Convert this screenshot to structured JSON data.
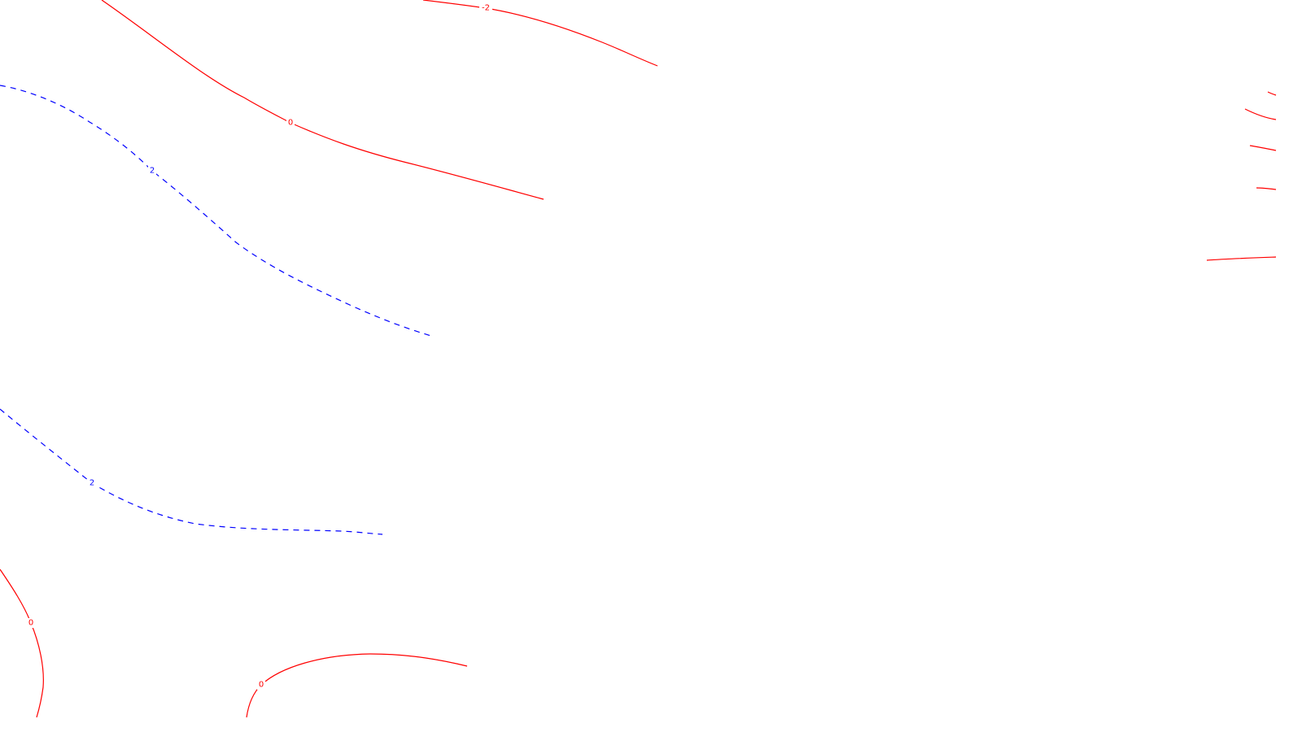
{
  "colors": {
    "background": "#ffffff",
    "solid": "#ff0000",
    "dashed": "#0000ff"
  },
  "contours": [
    {
      "id": "contour-0-upper",
      "style": "solid",
      "color": "#ff0000",
      "label": "0"
    },
    {
      "id": "contour-neg2-top",
      "style": "solid",
      "color": "#ff0000",
      "label": "-2"
    },
    {
      "id": "contour-2-upper",
      "style": "dashed",
      "color": "#0000ff",
      "label": "2"
    },
    {
      "id": "contour-2-lower",
      "style": "dashed",
      "color": "#0000ff",
      "label": "2"
    },
    {
      "id": "contour-0-bottom-left",
      "style": "solid",
      "color": "#ff0000",
      "label": "0"
    },
    {
      "id": "contour-0-bottom-mid",
      "style": "solid",
      "color": "#ff0000",
      "label": "0"
    },
    {
      "id": "contour-right-1",
      "style": "solid",
      "color": "#ff0000",
      "label": ""
    },
    {
      "id": "contour-right-2",
      "style": "solid",
      "color": "#ff0000",
      "label": ""
    },
    {
      "id": "contour-right-3",
      "style": "solid",
      "color": "#ff0000",
      "label": ""
    },
    {
      "id": "contour-right-4",
      "style": "solid",
      "color": "#ff0000",
      "label": ""
    },
    {
      "id": "contour-right-5",
      "style": "solid",
      "color": "#ff0000",
      "label": ""
    }
  ]
}
